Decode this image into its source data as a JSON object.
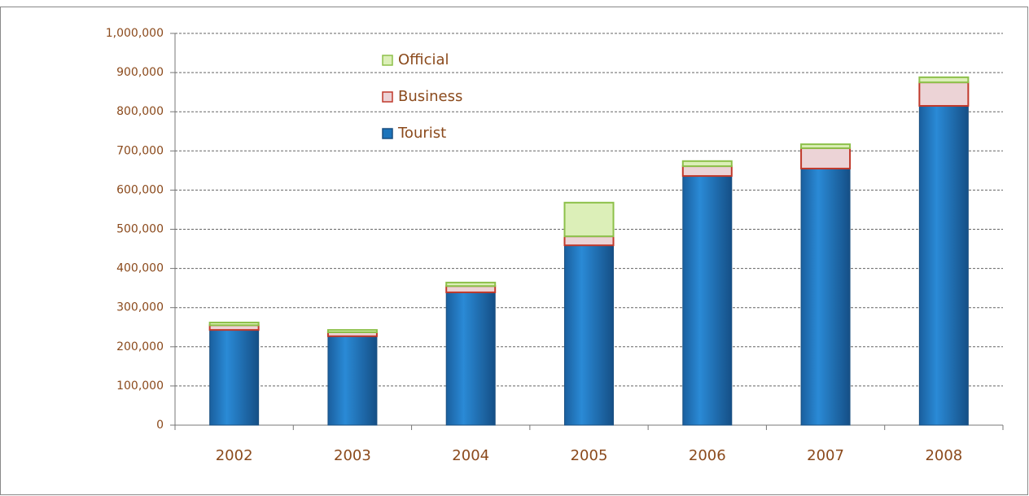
{
  "chart_data": {
    "type": "stacked-bar",
    "categories": [
      "2002",
      "2003",
      "2004",
      "2005",
      "2006",
      "2007",
      "2008"
    ],
    "series": [
      {
        "name": "Tourist",
        "color": "#1c74bb",
        "stroke": "#1a4f80",
        "values": [
          243000,
          227000,
          339000,
          459000,
          636000,
          655000,
          815000
        ]
      },
      {
        "name": "Business",
        "color": "#ecd3d6",
        "stroke": "#c0392b",
        "values": [
          12000,
          10000,
          16000,
          23000,
          25000,
          52000,
          60000
        ]
      },
      {
        "name": "Official",
        "color": "#dcefb8",
        "stroke": "#8dc04a",
        "values": [
          7000,
          6000,
          9000,
          86000,
          13000,
          10000,
          13000
        ]
      }
    ],
    "ylim": [
      0,
      1000000
    ],
    "yticks": [
      0,
      {
        "value": 100000,
        "label": "100,000"
      },
      {
        "value": 200000,
        "label": "200,000"
      },
      {
        "value": 300000,
        "label": "300,000"
      },
      {
        "value": 400000,
        "label": "400,000"
      },
      {
        "value": 500000,
        "label": "500,000"
      },
      {
        "value": 600000,
        "label": "600,000"
      },
      {
        "value": 700000,
        "label": "700,000"
      },
      {
        "value": 800000,
        "label": "800,000"
      },
      {
        "value": 900000,
        "label": "900,000"
      },
      {
        "value": 1000000,
        "label": "1,000,000"
      }
    ],
    "grid": true
  }
}
